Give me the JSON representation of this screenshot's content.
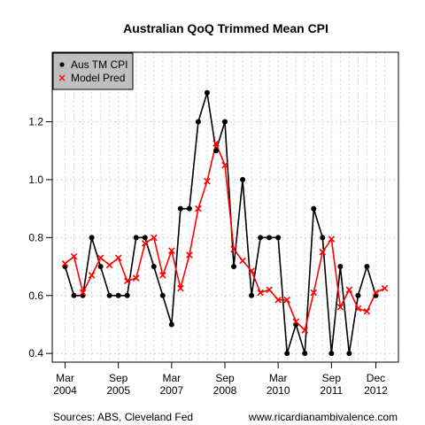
{
  "chart_data": {
    "type": "line",
    "title": "Australian QoQ Trimmed Mean CPI",
    "xlabel": "",
    "ylabel": "",
    "x": [
      "Mar 2004",
      "Jun 2004",
      "Sep 2004",
      "Dec 2004",
      "Mar 2005",
      "Jun 2005",
      "Sep 2005",
      "Dec 2005",
      "Mar 2006",
      "Jun 2006",
      "Sep 2006",
      "Dec 2006",
      "Mar 2007",
      "Jun 2007",
      "Sep 2007",
      "Dec 2007",
      "Mar 2008",
      "Jun 2008",
      "Sep 2008",
      "Dec 2008",
      "Mar 2009",
      "Jun 2009",
      "Sep 2009",
      "Dec 2009",
      "Mar 2010",
      "Jun 2010",
      "Sep 2010",
      "Dec 2010",
      "Mar 2011",
      "Jun 2011",
      "Sep 2011",
      "Dec 2011",
      "Mar 2012",
      "Jun 2012",
      "Sep 2012",
      "Dec 2012",
      "Mar 2013"
    ],
    "ylim": [
      0.37,
      1.44
    ],
    "yticks": [
      0.4,
      0.6,
      0.8,
      1.0,
      1.2
    ],
    "ytick_labels": [
      "0.4",
      "0.6",
      "0.8",
      "1.0",
      "1.2"
    ],
    "xticks": [
      {
        "index": 0,
        "label1": "Mar",
        "label2": "2004"
      },
      {
        "index": 6,
        "label1": "Sep",
        "label2": "2005"
      },
      {
        "index": 12,
        "label1": "Mar",
        "label2": "2007"
      },
      {
        "index": 18,
        "label1": "Sep",
        "label2": "2008"
      },
      {
        "index": 24,
        "label1": "Mar",
        "label2": "2010"
      },
      {
        "index": 30,
        "label1": "Sep",
        "label2": "2011"
      },
      {
        "index": 35,
        "label1": "Dec",
        "label2": "2012"
      }
    ],
    "grid": true,
    "legend_position": "top-left",
    "series": [
      {
        "name": "Aus TM CPI",
        "color": "#000000",
        "marker": "circle",
        "values": [
          0.7,
          0.6,
          0.6,
          0.8,
          0.7,
          0.6,
          0.6,
          0.6,
          0.8,
          0.8,
          0.7,
          0.6,
          0.5,
          0.9,
          0.9,
          1.2,
          1.3,
          1.1,
          1.2,
          0.7,
          1.0,
          0.6,
          0.8,
          0.8,
          0.8,
          0.4,
          0.5,
          0.4,
          0.9,
          0.8,
          0.4,
          0.7,
          0.4,
          0.6,
          0.7,
          0.6,
          null
        ]
      },
      {
        "name": "Model Pred",
        "color": "#ff0000",
        "marker": "x",
        "values": [
          0.71,
          0.735,
          0.61,
          0.67,
          0.73,
          0.705,
          0.73,
          0.65,
          0.66,
          0.78,
          0.8,
          0.67,
          0.755,
          0.625,
          0.74,
          0.9,
          0.995,
          1.125,
          1.05,
          0.76,
          0.72,
          0.685,
          0.61,
          0.62,
          0.585,
          0.585,
          0.51,
          0.48,
          0.61,
          0.75,
          0.795,
          0.56,
          0.62,
          0.555,
          0.545,
          0.61,
          0.625
        ]
      }
    ]
  },
  "footer": {
    "left": "Sources: ABS, Cleveland Fed",
    "right": "www.ricardianambivalence.com"
  }
}
